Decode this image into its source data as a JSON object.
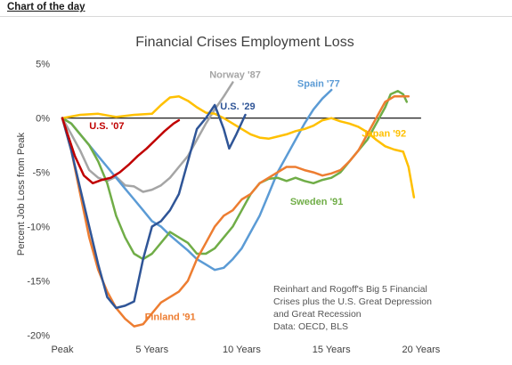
{
  "header": {
    "link_text": "Chart of the day"
  },
  "chart_data": {
    "type": "line",
    "title": "Financial Crises Employment Loss",
    "ylabel": "Percent Job Loss from Peak",
    "xlabel": "",
    "x_ticks": [
      {
        "x": 0,
        "label": "Peak"
      },
      {
        "x": 5,
        "label": "5 Years"
      },
      {
        "x": 10,
        "label": "10 Years"
      },
      {
        "x": 15,
        "label": "15 Years"
      },
      {
        "x": 20,
        "label": "20 Years"
      }
    ],
    "y_ticks": [
      {
        "y": 5,
        "label": "5%"
      },
      {
        "y": 0,
        "label": "0%"
      },
      {
        "y": -5,
        "label": "-5%"
      },
      {
        "y": -10,
        "label": "-10%"
      },
      {
        "y": -15,
        "label": "-15%"
      },
      {
        "y": -20,
        "label": "-20%"
      }
    ],
    "xlim": [
      0,
      20.6
    ],
    "ylim": [
      -20.3,
      5.8
    ],
    "grid": false,
    "legend": "none",
    "zero_line": true,
    "annotation": [
      "Reinhart and Rogoff's Big 5 Financial",
      "Crises plus the U.S. Great Depression",
      "and Great Recession",
      "Data: OECD, BLS"
    ],
    "series": [
      {
        "name": "Norway '87",
        "color": "#a5a5a5",
        "points": [
          [
            0,
            0
          ],
          [
            0.5,
            -1.5
          ],
          [
            1,
            -3
          ],
          [
            1.5,
            -4.8
          ],
          [
            2,
            -5.5
          ],
          [
            2.5,
            -5.8
          ],
          [
            3,
            -5.4
          ],
          [
            3.5,
            -6.2
          ],
          [
            4,
            -6.3
          ],
          [
            4.5,
            -6.8
          ],
          [
            5,
            -6.6
          ],
          [
            5.5,
            -6.2
          ],
          [
            6,
            -5.5
          ],
          [
            6.5,
            -4.5
          ],
          [
            7,
            -3.5
          ],
          [
            7.5,
            -2
          ],
          [
            8,
            -0.5
          ],
          [
            8.5,
            0.8
          ],
          [
            9,
            2
          ],
          [
            9.5,
            3.3
          ]
        ]
      },
      {
        "name": "Spain '77",
        "color": "#5b9bd5",
        "points": [
          [
            0,
            0
          ],
          [
            0.5,
            -0.5
          ],
          [
            1,
            -1.5
          ],
          [
            1.5,
            -2.5
          ],
          [
            2,
            -3.5
          ],
          [
            2.5,
            -4.5
          ],
          [
            3,
            -5.5
          ],
          [
            3.5,
            -6.5
          ],
          [
            4,
            -7.5
          ],
          [
            4.5,
            -8.5
          ],
          [
            5,
            -9.5
          ],
          [
            5.5,
            -10
          ],
          [
            6,
            -10.8
          ],
          [
            6.5,
            -11.5
          ],
          [
            7,
            -12.2
          ],
          [
            7.5,
            -13
          ],
          [
            8,
            -13.5
          ],
          [
            8.5,
            -14
          ],
          [
            9,
            -13.8
          ],
          [
            9.5,
            -13
          ],
          [
            10,
            -12
          ],
          [
            10.5,
            -10.5
          ],
          [
            11,
            -9
          ],
          [
            11.5,
            -7
          ],
          [
            12,
            -5
          ],
          [
            12.5,
            -3.5
          ],
          [
            13,
            -2
          ],
          [
            13.5,
            -0.5
          ],
          [
            14,
            0.8
          ],
          [
            14.5,
            1.8
          ],
          [
            15,
            2.6
          ]
        ]
      },
      {
        "name": "U.S. '07",
        "color": "#c00000",
        "points": [
          [
            0,
            0
          ],
          [
            0.3,
            -1.5
          ],
          [
            0.7,
            -3.5
          ],
          [
            1.2,
            -5.3
          ],
          [
            1.7,
            -6
          ],
          [
            2.2,
            -5.7
          ],
          [
            2.7,
            -5.5
          ],
          [
            3.2,
            -5
          ],
          [
            3.7,
            -4.3
          ],
          [
            4.2,
            -3.5
          ],
          [
            4.7,
            -2.8
          ],
          [
            5.2,
            -2
          ],
          [
            5.7,
            -1.2
          ],
          [
            6.2,
            -0.5
          ],
          [
            6.5,
            -0.2
          ]
        ]
      },
      {
        "name": "U.S. '29",
        "color": "#2f5597",
        "points": [
          [
            0,
            0
          ],
          [
            0.5,
            -3
          ],
          [
            1,
            -6.5
          ],
          [
            1.5,
            -10
          ],
          [
            2,
            -13.5
          ],
          [
            2.5,
            -16.5
          ],
          [
            3,
            -17.5
          ],
          [
            3.5,
            -17.3
          ],
          [
            4,
            -16.9
          ],
          [
            4.5,
            -13
          ],
          [
            5,
            -10
          ],
          [
            5.5,
            -9.5
          ],
          [
            6,
            -8.5
          ],
          [
            6.5,
            -7
          ],
          [
            7,
            -4
          ],
          [
            7.5,
            -1
          ],
          [
            8,
            0
          ],
          [
            8.5,
            1.2
          ],
          [
            9,
            -1
          ],
          [
            9.3,
            -2.8
          ],
          [
            9.7,
            -1.5
          ],
          [
            10.2,
            0.3
          ]
        ]
      },
      {
        "name": "Japan '92",
        "color": "#ffc000",
        "points": [
          [
            0,
            0
          ],
          [
            1,
            0.3
          ],
          [
            2,
            0.4
          ],
          [
            3,
            0.1
          ],
          [
            4,
            0.3
          ],
          [
            5,
            0.4
          ],
          [
            5.5,
            1.2
          ],
          [
            6,
            1.9
          ],
          [
            6.5,
            2
          ],
          [
            7,
            1.6
          ],
          [
            7.5,
            1
          ],
          [
            8,
            0.5
          ],
          [
            8.5,
            0.4
          ],
          [
            9,
            0
          ],
          [
            9.5,
            -0.5
          ],
          [
            10,
            -1
          ],
          [
            10.5,
            -1.5
          ],
          [
            11,
            -1.8
          ],
          [
            11.5,
            -1.9
          ],
          [
            12,
            -1.7
          ],
          [
            12.5,
            -1.5
          ],
          [
            13,
            -1.2
          ],
          [
            13.5,
            -1
          ],
          [
            14,
            -0.7
          ],
          [
            14.5,
            -0.2
          ],
          [
            15,
            0
          ],
          [
            15.5,
            -0.3
          ],
          [
            16,
            -0.5
          ],
          [
            16.5,
            -0.8
          ],
          [
            17,
            -1.3
          ],
          [
            17.5,
            -2
          ],
          [
            18,
            -2.6
          ],
          [
            18.5,
            -2.9
          ],
          [
            19,
            -3.1
          ],
          [
            19.3,
            -4.5
          ],
          [
            19.6,
            -7.3
          ]
        ]
      },
      {
        "name": "Sweden '91",
        "color": "#70ad47",
        "points": [
          [
            0,
            0
          ],
          [
            0.5,
            -0.5
          ],
          [
            1,
            -1.5
          ],
          [
            1.5,
            -2.5
          ],
          [
            2,
            -4
          ],
          [
            2.5,
            -6
          ],
          [
            3,
            -9
          ],
          [
            3.5,
            -11
          ],
          [
            4,
            -12.5
          ],
          [
            4.5,
            -13
          ],
          [
            5,
            -12.5
          ],
          [
            5.5,
            -11.5
          ],
          [
            6,
            -10.5
          ],
          [
            6.5,
            -11
          ],
          [
            7,
            -11.5
          ],
          [
            7.5,
            -12.5
          ],
          [
            8,
            -12.5
          ],
          [
            8.5,
            -12
          ],
          [
            9,
            -11
          ],
          [
            9.5,
            -10
          ],
          [
            10,
            -8.5
          ],
          [
            10.5,
            -7
          ],
          [
            11,
            -6
          ],
          [
            11.5,
            -5.6
          ],
          [
            12,
            -5.5
          ],
          [
            12.5,
            -5.8
          ],
          [
            13,
            -5.5
          ],
          [
            13.5,
            -5.8
          ],
          [
            14,
            -6
          ],
          [
            14.5,
            -5.7
          ],
          [
            15,
            -5.5
          ],
          [
            15.5,
            -5
          ],
          [
            16,
            -4
          ],
          [
            16.5,
            -3
          ],
          [
            17,
            -2
          ],
          [
            17.5,
            -0.5
          ],
          [
            18,
            1
          ],
          [
            18.3,
            2.2
          ],
          [
            18.7,
            2.5
          ],
          [
            19,
            2.2
          ],
          [
            19.2,
            1.5
          ]
        ]
      },
      {
        "name": "Finland '91",
        "color": "#ed7d31",
        "points": [
          [
            0,
            0
          ],
          [
            0.5,
            -3
          ],
          [
            1,
            -7
          ],
          [
            1.5,
            -11
          ],
          [
            2,
            -14
          ],
          [
            2.5,
            -16
          ],
          [
            3,
            -17.5
          ],
          [
            3.5,
            -18.5
          ],
          [
            4,
            -19.2
          ],
          [
            4.5,
            -19
          ],
          [
            5,
            -18
          ],
          [
            5.5,
            -17
          ],
          [
            6,
            -16.5
          ],
          [
            6.5,
            -16
          ],
          [
            7,
            -15
          ],
          [
            7.5,
            -13
          ],
          [
            8,
            -11.5
          ],
          [
            8.5,
            -10
          ],
          [
            9,
            -9
          ],
          [
            9.5,
            -8.5
          ],
          [
            10,
            -7.5
          ],
          [
            10.5,
            -7
          ],
          [
            11,
            -6
          ],
          [
            11.5,
            -5.5
          ],
          [
            12,
            -5
          ],
          [
            12.5,
            -4.5
          ],
          [
            13,
            -4.5
          ],
          [
            13.5,
            -4.8
          ],
          [
            14,
            -5
          ],
          [
            14.5,
            -5.3
          ],
          [
            15,
            -5.1
          ],
          [
            15.5,
            -4.8
          ],
          [
            16,
            -4
          ],
          [
            16.5,
            -3
          ],
          [
            17,
            -1.5
          ],
          [
            17.5,
            0
          ],
          [
            18,
            1.5
          ],
          [
            18.5,
            2
          ],
          [
            19,
            2
          ],
          [
            19.3,
            2
          ]
        ]
      }
    ],
    "series_labels": [
      {
        "text": "Norway '87",
        "x": 8.2,
        "y": 3.7
      },
      {
        "text": "Spain '77",
        "x": 13.1,
        "y": 2.9
      },
      {
        "text": "U.S. '07",
        "x": 1.5,
        "y": -1.0
      },
      {
        "text": "U.S. '29",
        "x": 8.8,
        "y": 0.8
      },
      {
        "text": "Japan '92",
        "x": 16.7,
        "y": -1.7
      },
      {
        "text": "Sweden '91",
        "x": 12.7,
        "y": -8.0
      },
      {
        "text": "Finland '91",
        "x": 4.6,
        "y": -18.6
      }
    ]
  }
}
